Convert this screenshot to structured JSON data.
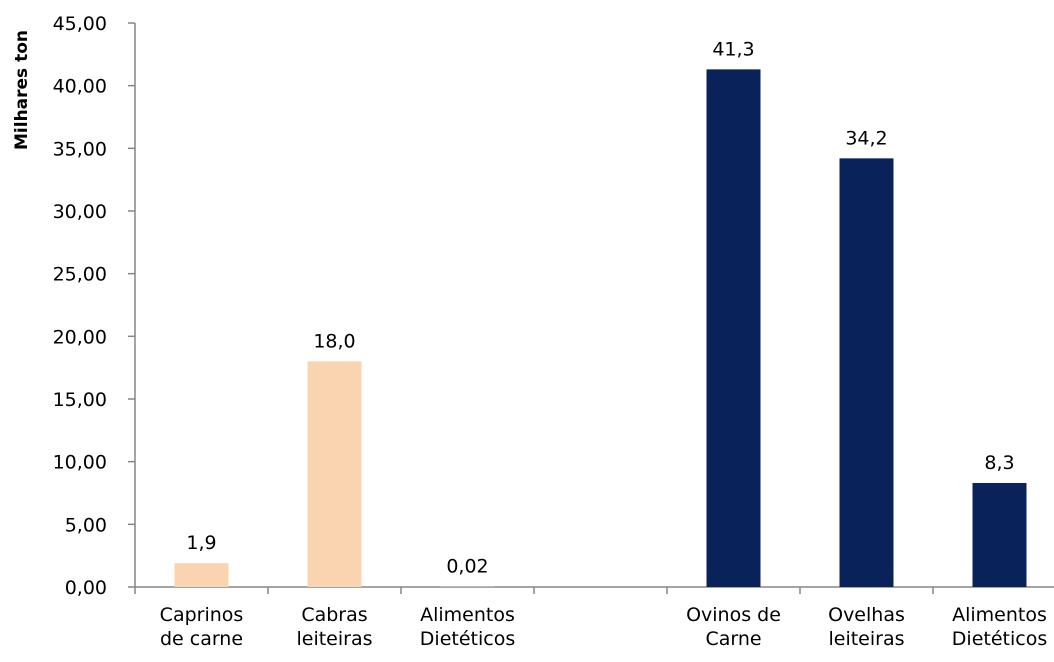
{
  "chart_data": {
    "type": "bar",
    "ylabel": "Milhares ton",
    "xlabel": "",
    "title": "",
    "ylim": [
      0,
      45
    ],
    "ytick_step": 5,
    "ytick_labels": [
      "0,00",
      "5,00",
      "10,00",
      "15,00",
      "20,00",
      "25,00",
      "30,00",
      "35,00",
      "40,00",
      "45,00"
    ],
    "categories": [
      [
        "Caprinos",
        "de carne"
      ],
      [
        "Cabras",
        "leiteiras"
      ],
      [
        "Alimentos",
        "Dietéticos"
      ],
      [
        "",
        ""
      ],
      [
        "Ovinos de",
        "Carne"
      ],
      [
        "Ovelhas",
        "leiteiras"
      ],
      [
        "Alimentos",
        "Dietéticos"
      ]
    ],
    "values": [
      1.9,
      18.0,
      0.02,
      null,
      41.3,
      34.2,
      8.3
    ],
    "data_labels": [
      "1,9",
      "18,0",
      "0,02",
      "",
      "41,3",
      "34,2",
      "8,3"
    ],
    "colors": [
      "#FAD4B0",
      "#FAD4B0",
      "#FAD4B0",
      "#FFFFFF",
      "#0A225A",
      "#0A225A",
      "#0A225A"
    ],
    "grid": false,
    "legend": "none"
  }
}
